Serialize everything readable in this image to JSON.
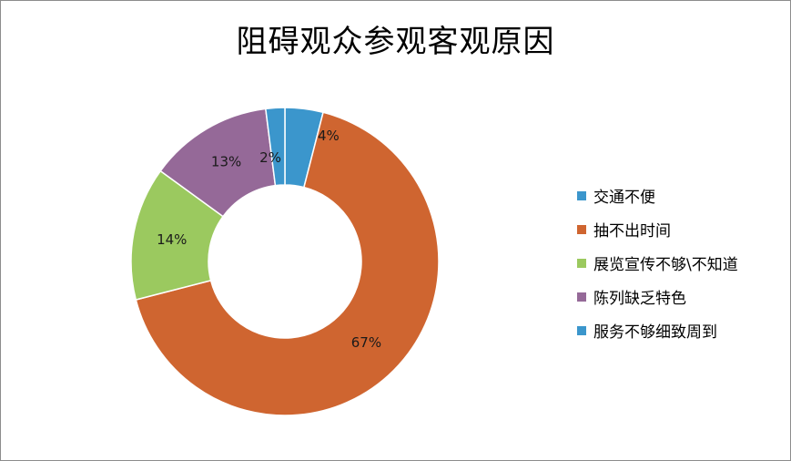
{
  "chart_data": {
    "type": "pie",
    "title": "阻碍观众参观客观原因",
    "series": [
      {
        "name": "交通不便",
        "value": 4,
        "label": "4%",
        "color": "#3b96cc"
      },
      {
        "name": "抽不出时间",
        "value": 67,
        "label": "67%",
        "color": "#cf6530"
      },
      {
        "name": "展览宣传不够\\不知道",
        "value": 14,
        "label": "14%",
        "color": "#9bc95f"
      },
      {
        "name": "陈列缺乏特色",
        "value": 13,
        "label": "13%",
        "color": "#956998"
      },
      {
        "name": "服务不够细致周到",
        "value": 2,
        "label": "2%",
        "color": "#3b96cc"
      }
    ],
    "legend_position": "right"
  }
}
